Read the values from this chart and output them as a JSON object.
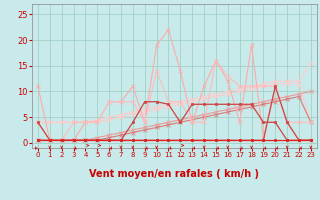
{
  "xlabel": "Vent moyen/en rafales ( km/h )",
  "xlim": [
    -0.5,
    23.5
  ],
  "ylim": [
    -1,
    27
  ],
  "xticks": [
    0,
    1,
    2,
    3,
    4,
    5,
    6,
    7,
    8,
    9,
    10,
    11,
    12,
    13,
    14,
    15,
    16,
    17,
    18,
    19,
    20,
    21,
    22,
    23
  ],
  "yticks": [
    0,
    5,
    10,
    15,
    20,
    25
  ],
  "bg_color": "#c8eaea",
  "grid_color": "#99ccbb",
  "lines": [
    {
      "x": [
        0,
        1,
        2,
        3,
        4,
        5,
        6,
        7,
        8,
        9,
        10,
        11,
        12,
        13,
        14,
        15,
        16,
        17,
        18,
        19,
        20,
        21,
        22,
        23
      ],
      "y": [
        11,
        0.5,
        0.5,
        0.5,
        4,
        4,
        8,
        8,
        11,
        4,
        19,
        22,
        14,
        4,
        11,
        16,
        12,
        4,
        19,
        1,
        11,
        4,
        0.5,
        0.5
      ],
      "color": "#ffaaaa",
      "lw": 0.8,
      "marker": "x",
      "ms": 2.5,
      "zorder": 3
    },
    {
      "x": [
        0,
        1,
        2,
        3,
        4,
        5,
        6,
        7,
        8,
        9,
        10,
        11,
        12,
        13,
        14,
        15,
        16,
        17,
        18,
        19,
        20,
        21,
        22,
        23
      ],
      "y": [
        4,
        0.5,
        0.5,
        4,
        4,
        4,
        8,
        8,
        8,
        4,
        14,
        8,
        8,
        4,
        4,
        16,
        13,
        11,
        11,
        11,
        11,
        4,
        4,
        4
      ],
      "color": "#ffbbbb",
      "lw": 0.8,
      "marker": "x",
      "ms": 2.5,
      "zorder": 3
    },
    {
      "x": [
        0,
        1,
        2,
        3,
        4,
        5,
        6,
        7,
        8,
        9,
        10,
        11,
        12,
        13,
        14,
        15,
        16,
        17,
        18,
        19,
        20,
        21,
        22,
        23
      ],
      "y": [
        4,
        4,
        4,
        4,
        4,
        4.5,
        5,
        5.5,
        6,
        6.5,
        7,
        7.5,
        8,
        8.5,
        9,
        9.5,
        10,
        10.5,
        11,
        11.5,
        12,
        12,
        12,
        15.5
      ],
      "color": "#ffcccc",
      "lw": 0.8,
      "marker": "x",
      "ms": 2.5,
      "zorder": 2
    },
    {
      "x": [
        0,
        1,
        2,
        3,
        4,
        5,
        6,
        7,
        8,
        9,
        10,
        11,
        12,
        13,
        14,
        15,
        16,
        17,
        18,
        19,
        20,
        21,
        22,
        23
      ],
      "y": [
        4,
        4,
        4,
        4,
        4,
        4,
        4.5,
        5,
        5.5,
        6,
        6.5,
        7,
        7.5,
        8,
        8.5,
        9,
        9.5,
        10,
        10.5,
        11,
        11.5,
        11.5,
        11.5,
        4
      ],
      "color": "#ffcccc",
      "lw": 0.8,
      "marker": "x",
      "ms": 2.5,
      "zorder": 2
    },
    {
      "x": [
        0,
        1,
        2,
        3,
        4,
        5,
        6,
        7,
        8,
        9,
        10,
        11,
        12,
        13,
        14,
        15,
        16,
        17,
        18,
        19,
        20,
        21,
        22,
        23
      ],
      "y": [
        0.5,
        0.5,
        0.5,
        0.5,
        0.5,
        1,
        1.5,
        2,
        2.5,
        3,
        3.5,
        4,
        4.5,
        5,
        5.5,
        6,
        6.5,
        7,
        7.5,
        8,
        8.5,
        9,
        9.5,
        10
      ],
      "color": "#ee9999",
      "lw": 0.8,
      "marker": "x",
      "ms": 2.5,
      "zorder": 2
    },
    {
      "x": [
        0,
        1,
        2,
        3,
        4,
        5,
        6,
        7,
        8,
        9,
        10,
        11,
        12,
        13,
        14,
        15,
        16,
        17,
        18,
        19,
        20,
        21,
        22,
        23
      ],
      "y": [
        0.5,
        0.5,
        0.5,
        0.5,
        0.5,
        0.5,
        0.5,
        0.5,
        4,
        8,
        8,
        7.5,
        4,
        7.5,
        7.5,
        7.5,
        7.5,
        7.5,
        7.5,
        4,
        4,
        0.5,
        0.5,
        0.5
      ],
      "color": "#cc4444",
      "lw": 0.9,
      "marker": "s",
      "ms": 2,
      "zorder": 4
    },
    {
      "x": [
        0,
        1,
        2,
        3,
        4,
        5,
        6,
        7,
        8,
        9,
        10,
        11,
        12,
        13,
        14,
        15,
        16,
        17,
        18,
        19,
        20,
        21,
        22,
        23
      ],
      "y": [
        4,
        0.5,
        0.5,
        0.5,
        0.5,
        0.5,
        0.5,
        0.5,
        0.5,
        0.5,
        0.5,
        0.5,
        0.5,
        0.5,
        0.5,
        0.5,
        0.5,
        0.5,
        0.5,
        0.5,
        11,
        4,
        0.5,
        0.5
      ],
      "color": "#cc4444",
      "lw": 0.9,
      "marker": "s",
      "ms": 2,
      "zorder": 4
    },
    {
      "x": [
        0,
        1,
        2,
        3,
        4,
        5,
        6,
        7,
        8,
        9,
        10,
        11,
        12,
        13,
        14,
        15,
        16,
        17,
        18,
        19,
        20,
        21,
        22,
        23
      ],
      "y": [
        0.5,
        0.5,
        0.5,
        0.5,
        0.5,
        0.5,
        0.5,
        0.5,
        0.5,
        0.5,
        0.5,
        0.5,
        0.5,
        0.5,
        0.5,
        0.5,
        0.5,
        0.5,
        0.5,
        0.5,
        0.5,
        0.5,
        0.5,
        0.5
      ],
      "color": "#dd2222",
      "lw": 0.9,
      "marker": "s",
      "ms": 2,
      "zorder": 4
    },
    {
      "x": [
        0,
        1,
        2,
        3,
        4,
        5,
        6,
        7,
        8,
        9,
        10,
        11,
        12,
        13,
        14,
        15,
        16,
        17,
        18,
        19,
        20,
        21,
        22,
        23
      ],
      "y": [
        0.5,
        0.5,
        0.5,
        0.5,
        0.5,
        0.5,
        1,
        1.5,
        2,
        2.5,
        3,
        3.5,
        4,
        4.5,
        5,
        5.5,
        6,
        6.5,
        7,
        7.5,
        8,
        8.5,
        9,
        4
      ],
      "color": "#dd7777",
      "lw": 0.8,
      "marker": "x",
      "ms": 2.5,
      "zorder": 2
    }
  ],
  "xlabel_color": "#cc0000",
  "tick_color": "#cc0000",
  "xlabel_fontsize": 7,
  "tick_fontsize_x": 5,
  "tick_fontsize_y": 6
}
